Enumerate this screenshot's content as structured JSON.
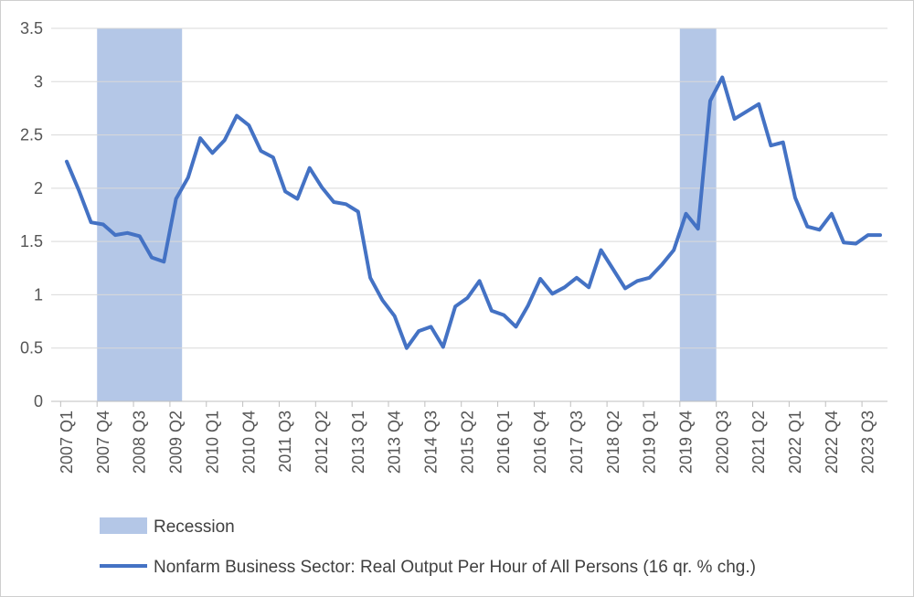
{
  "chart_data": {
    "type": "line",
    "title": "",
    "xlabel": "",
    "ylabel": "",
    "ylim": [
      0,
      3.5
    ],
    "y_ticks": [
      "3.5",
      "3",
      "2.5",
      "2",
      "1.5",
      "1",
      "0.5",
      "0"
    ],
    "grid": true,
    "legend_position": "bottom",
    "x_tick_labels": [
      "2007 Q1",
      "2007 Q4",
      "2008 Q3",
      "2009 Q2",
      "2010 Q1",
      "2010 Q4",
      "2011 Q3",
      "2012 Q2",
      "2013 Q1",
      "2013 Q4",
      "2014 Q3",
      "2015 Q2",
      "2016 Q1",
      "2016 Q4",
      "2017 Q3",
      "2018 Q2",
      "2019 Q1",
      "2019 Q4",
      "2020 Q3",
      "2021 Q2",
      "2022 Q1",
      "2022 Q4",
      "2023 Q3"
    ],
    "categories": [
      "2007 Q1",
      "2007 Q2",
      "2007 Q3",
      "2007 Q4",
      "2008 Q1",
      "2008 Q2",
      "2008 Q3",
      "2008 Q4",
      "2009 Q1",
      "2009 Q2",
      "2009 Q3",
      "2009 Q4",
      "2010 Q1",
      "2010 Q2",
      "2010 Q3",
      "2010 Q4",
      "2011 Q1",
      "2011 Q2",
      "2011 Q3",
      "2011 Q4",
      "2012 Q1",
      "2012 Q2",
      "2012 Q3",
      "2012 Q4",
      "2013 Q1",
      "2013 Q2",
      "2013 Q3",
      "2013 Q4",
      "2014 Q1",
      "2014 Q2",
      "2014 Q3",
      "2014 Q4",
      "2015 Q1",
      "2015 Q2",
      "2015 Q3",
      "2015 Q4",
      "2016 Q1",
      "2016 Q2",
      "2016 Q3",
      "2016 Q4",
      "2017 Q1",
      "2017 Q2",
      "2017 Q3",
      "2017 Q4",
      "2018 Q1",
      "2018 Q2",
      "2018 Q3",
      "2018 Q4",
      "2019 Q1",
      "2019 Q2",
      "2019 Q3",
      "2019 Q4",
      "2020 Q1",
      "2020 Q2",
      "2020 Q3",
      "2020 Q4",
      "2021 Q1",
      "2021 Q2",
      "2021 Q3",
      "2021 Q4",
      "2022 Q1",
      "2022 Q2",
      "2022 Q3",
      "2022 Q4",
      "2023 Q1",
      "2023 Q2",
      "2023 Q3",
      "2023 Q4"
    ],
    "series": [
      {
        "name": "Nonfarm Business Sector: Real Output Per Hour of All Persons (16 qr. % chg.)",
        "color": "#4472c4",
        "values": [
          2.25,
          1.98,
          1.68,
          1.66,
          1.56,
          1.58,
          1.55,
          1.35,
          1.31,
          1.9,
          2.1,
          2.47,
          2.33,
          2.45,
          2.68,
          2.59,
          2.35,
          2.29,
          1.97,
          1.9,
          2.19,
          2.01,
          1.87,
          1.85,
          1.78,
          1.16,
          0.95,
          0.8,
          0.5,
          0.66,
          0.7,
          0.51,
          0.89,
          0.97,
          1.13,
          0.85,
          0.81,
          0.7,
          0.9,
          1.15,
          1.01,
          1.07,
          1.16,
          1.07,
          1.42,
          1.24,
          1.06,
          1.13,
          1.16,
          1.28,
          1.42,
          1.76,
          1.62,
          2.82,
          3.04,
          2.65,
          2.72,
          2.79,
          2.4,
          2.43,
          1.91,
          1.64,
          1.61,
          1.76,
          1.49,
          1.48,
          1.56,
          1.56
        ]
      }
    ],
    "recessions": [
      {
        "name": "Recession",
        "start": "2007 Q4",
        "end": "2009 Q2",
        "color": "#b4c7e7"
      },
      {
        "name": "Recession",
        "start": "2019 Q4",
        "end": "2020 Q2",
        "color": "#b4c7e7"
      }
    ],
    "legend": [
      {
        "label": "Recession",
        "kind": "band",
        "color": "#b4c7e7"
      },
      {
        "label": "Nonfarm Business Sector: Real Output Per Hour of All Persons (16 qr. % chg.)",
        "kind": "line",
        "color": "#4472c4"
      }
    ]
  }
}
